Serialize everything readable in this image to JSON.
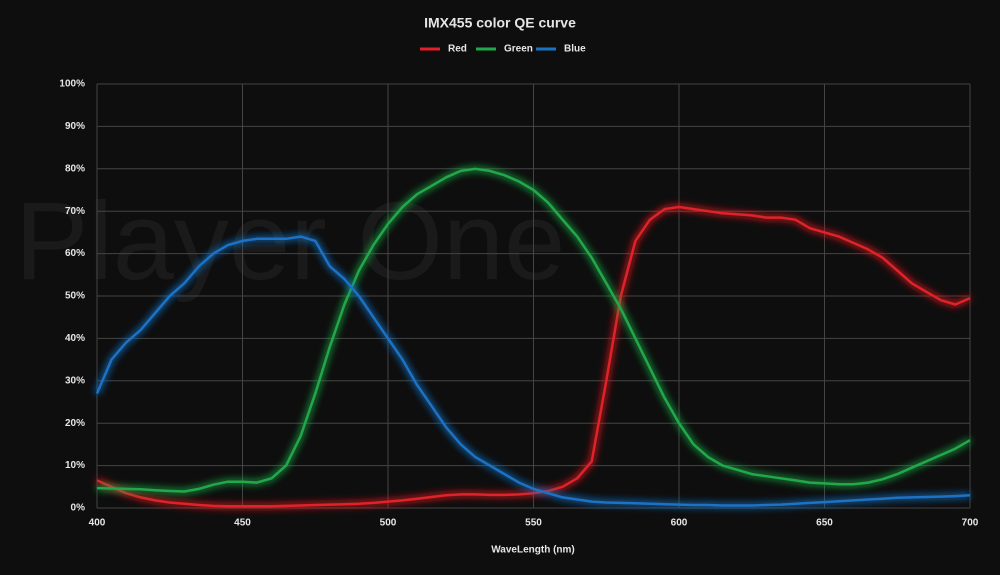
{
  "chart_data": {
    "type": "line",
    "title": "IMX455 color QE curve",
    "watermark": "Player One",
    "x_label": "WaveLength (nm)",
    "x": [
      400,
      405,
      410,
      415,
      420,
      425,
      430,
      435,
      440,
      445,
      450,
      455,
      460,
      465,
      470,
      475,
      480,
      485,
      490,
      495,
      500,
      505,
      510,
      515,
      520,
      525,
      530,
      535,
      540,
      545,
      550,
      555,
      560,
      565,
      570,
      575,
      580,
      585,
      590,
      595,
      600,
      605,
      610,
      615,
      620,
      625,
      630,
      635,
      640,
      645,
      650,
      655,
      660,
      665,
      670,
      675,
      680,
      685,
      690,
      695,
      700
    ],
    "series": [
      {
        "name": "Red",
        "color": "#e0202a",
        "values": [
          6.5,
          5,
          3.5,
          2.5,
          1.8,
          1.3,
          1,
          0.7,
          0.5,
          0.4,
          0.4,
          0.4,
          0.4,
          0.5,
          0.6,
          0.7,
          0.8,
          0.9,
          1,
          1.2,
          1.5,
          1.8,
          2.2,
          2.6,
          3,
          3.2,
          3.2,
          3.1,
          3.1,
          3.2,
          3.5,
          4,
          5,
          7,
          11,
          30,
          50,
          63,
          68,
          70.5,
          71,
          70.5,
          70,
          69.5,
          69.3,
          69,
          68.5,
          68.5,
          68,
          66,
          65,
          64,
          62.5,
          61,
          59,
          56,
          53,
          51,
          49,
          48,
          49.5
        ]
      },
      {
        "name": "Green",
        "color": "#22a84a",
        "values": [
          4.7,
          4.6,
          4.5,
          4.4,
          4.2,
          4,
          3.9,
          4.5,
          5.5,
          6.2,
          6.2,
          6,
          7,
          10,
          17,
          27,
          38,
          48,
          56,
          62,
          67,
          71,
          74,
          76,
          78,
          79.5,
          80,
          79.5,
          78.5,
          77,
          75,
          72,
          68,
          64,
          59,
          53,
          47,
          40,
          33,
          26,
          20,
          15,
          12,
          10,
          9,
          8,
          7.5,
          7,
          6.5,
          6,
          5.8,
          5.6,
          5.6,
          6,
          6.8,
          8,
          9.5,
          11,
          12.5,
          14,
          16
        ]
      },
      {
        "name": "Blue",
        "color": "#1a72c4",
        "values": [
          27,
          35,
          39,
          42,
          46,
          50,
          53,
          57,
          60,
          62,
          63,
          63.5,
          63.5,
          63.5,
          64,
          63,
          57,
          54,
          50,
          45,
          40,
          35,
          29,
          24,
          19,
          15,
          12,
          10,
          8,
          6,
          4.5,
          3.5,
          2.5,
          2,
          1.5,
          1.3,
          1.2,
          1.1,
          1,
          0.9,
          0.8,
          0.7,
          0.7,
          0.6,
          0.6,
          0.6,
          0.7,
          0.8,
          1,
          1.2,
          1.4,
          1.6,
          1.8,
          2,
          2.2,
          2.4,
          2.5,
          2.6,
          2.7,
          2.8,
          3
        ]
      }
    ],
    "xlim": [
      400,
      700
    ],
    "xticks": [
      400,
      450,
      500,
      550,
      600,
      650,
      700
    ],
    "ylim": [
      0,
      100
    ],
    "yticks": [
      {
        "value": 0,
        "label": "0%"
      },
      {
        "value": 10,
        "label": "10%"
      },
      {
        "value": 20,
        "label": "20%"
      },
      {
        "value": 30,
        "label": "30%"
      },
      {
        "value": 40,
        "label": "40%"
      },
      {
        "value": 50,
        "label": "50%"
      },
      {
        "value": 60,
        "label": "60%"
      },
      {
        "value": 70,
        "label": "70%"
      },
      {
        "value": 80,
        "label": "80%"
      },
      {
        "value": 90,
        "label": "90%"
      },
      {
        "value": 100,
        "label": "100%"
      }
    ],
    "grid": true
  }
}
